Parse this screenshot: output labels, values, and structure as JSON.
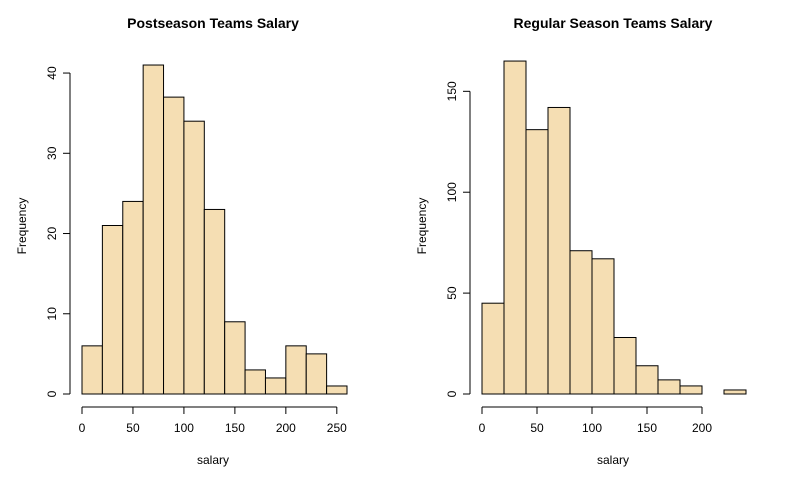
{
  "chart_data": [
    {
      "type": "bar",
      "title": "Postseason Teams Salary",
      "xlabel": "salary",
      "ylabel": "Frequency",
      "bin_edges": [
        0,
        20,
        40,
        60,
        80,
        100,
        120,
        140,
        160,
        180,
        200,
        220,
        240,
        260
      ],
      "values": [
        6,
        21,
        24,
        41,
        37,
        34,
        23,
        9,
        3,
        2,
        6,
        5,
        1
      ],
      "xlim": [
        0,
        260
      ],
      "ylim": [
        0,
        42
      ],
      "xticks": [
        0,
        50,
        100,
        150,
        200,
        250
      ],
      "yticks": [
        0,
        10,
        20,
        30,
        40
      ],
      "bar_color": "#F5DEB3",
      "grid": false
    },
    {
      "type": "bar",
      "title": "Regular Season Teams Salary",
      "xlabel": "salary",
      "ylabel": "Frequency",
      "bin_edges": [
        0,
        20,
        40,
        60,
        80,
        100,
        120,
        140,
        160,
        180,
        200,
        220,
        240
      ],
      "values": [
        45,
        165,
        131,
        142,
        71,
        67,
        28,
        14,
        7,
        4,
        0,
        2
      ],
      "xlim": [
        0,
        240
      ],
      "ylim": [
        0,
        168
      ],
      "xticks": [
        0,
        50,
        100,
        150,
        200
      ],
      "yticks": [
        0,
        50,
        100,
        150
      ],
      "bar_color": "#F5DEB3",
      "grid": false
    }
  ]
}
